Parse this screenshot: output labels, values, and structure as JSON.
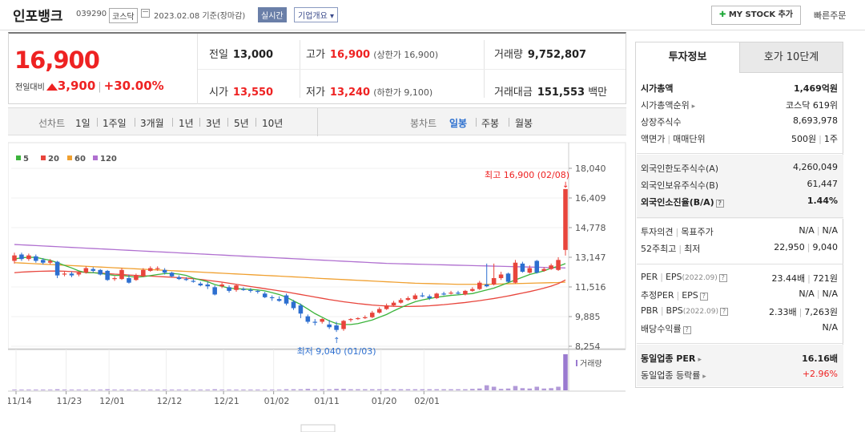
{
  "header": {
    "name": "인포뱅크",
    "code": "039290",
    "market": "코스닥",
    "date": "2023.02.08 기준(장마감)",
    "realtime": "실시간",
    "company_overview": "기업개요",
    "my_stock_add": "MY STOCK 추가",
    "quick_order": "빠른주문"
  },
  "summary": {
    "price": "16,900",
    "change_label": "전일대비",
    "change_amount": "3,900",
    "change_pct": "+30.00%",
    "prev_close_label": "전일",
    "prev_close": "13,000",
    "open_label": "시가",
    "open": "13,550",
    "high_label": "고가",
    "high": "16,900",
    "upper_limit": "(상한가 16,900)",
    "low_label": "저가",
    "low": "13,240",
    "lower_limit": "(하한가 9,100)",
    "volume_label": "거래량",
    "volume": "9,752,807",
    "amount_label": "거래대금",
    "amount": "151,553",
    "amount_unit": "백만"
  },
  "toolbar": {
    "line_chart": "선차트",
    "periods": [
      "1일",
      "1주일",
      "3개월",
      "1년",
      "3년",
      "5년",
      "10년"
    ],
    "candle_chart": "봉차트",
    "candle_periods": [
      "일봉",
      "주봉",
      "월봉"
    ],
    "active_candle": "일봉"
  },
  "chart_data": {
    "type": "candlestick",
    "legend": [
      {
        "name": "5",
        "color": "#3cb43c"
      },
      {
        "name": "20",
        "color": "#e8453c"
      },
      {
        "name": "60",
        "color": "#f0a030"
      },
      {
        "name": "120",
        "color": "#b070d0"
      }
    ],
    "y_ticks": [
      "18,040",
      "16,409",
      "14,778",
      "13,147",
      "11,516",
      "9,885",
      "8,254"
    ],
    "ylim": [
      8254,
      18040
    ],
    "x_ticks": [
      "11/14",
      "11/23",
      "12/01",
      "12/12",
      "12/21",
      "01/02",
      "01/11",
      "01/20",
      "02/01"
    ],
    "high_annotation": "최고 16,900 (02/08)",
    "low_annotation": "최저 9,040 (01/03)",
    "volume_label": "거래량",
    "candles": [
      {
        "o": 12950,
        "c": 13250,
        "h": 13400,
        "l": 12800
      },
      {
        "o": 13300,
        "c": 13050,
        "h": 13400,
        "l": 12950
      },
      {
        "o": 13050,
        "c": 13250,
        "h": 13350,
        "l": 12950
      },
      {
        "o": 13200,
        "c": 12950,
        "h": 13300,
        "l": 12850
      },
      {
        "o": 13000,
        "c": 12850,
        "h": 13100,
        "l": 12750
      },
      {
        "o": 12850,
        "c": 12950,
        "h": 13050,
        "l": 12750
      },
      {
        "o": 12900,
        "c": 12150,
        "h": 12950,
        "l": 12000
      },
      {
        "o": 12200,
        "c": 12250,
        "h": 12350,
        "l": 12100
      },
      {
        "o": 12250,
        "c": 12150,
        "h": 12350,
        "l": 12050
      },
      {
        "o": 12200,
        "c": 12300,
        "h": 12350,
        "l": 12100
      },
      {
        "o": 12300,
        "c": 12550,
        "h": 12650,
        "l": 12250
      },
      {
        "o": 12500,
        "c": 12400,
        "h": 12600,
        "l": 12300
      },
      {
        "o": 12450,
        "c": 12200,
        "h": 12500,
        "l": 12150
      },
      {
        "o": 12400,
        "c": 11900,
        "h": 12450,
        "l": 11850
      },
      {
        "o": 11950,
        "c": 12000,
        "h": 12100,
        "l": 11850
      },
      {
        "o": 11950,
        "c": 12450,
        "h": 12550,
        "l": 11900
      },
      {
        "o": 12000,
        "c": 11750,
        "h": 12200,
        "l": 11700
      },
      {
        "o": 11900,
        "c": 12150,
        "h": 12250,
        "l": 11850
      },
      {
        "o": 12100,
        "c": 12450,
        "h": 12550,
        "l": 12050
      },
      {
        "o": 12400,
        "c": 12550,
        "h": 12650,
        "l": 12350
      },
      {
        "o": 12500,
        "c": 12550,
        "h": 12650,
        "l": 12400
      },
      {
        "o": 12450,
        "c": 12300,
        "h": 12550,
        "l": 12200
      },
      {
        "o": 12300,
        "c": 12100,
        "h": 12350,
        "l": 12050
      },
      {
        "o": 12050,
        "c": 11950,
        "h": 12150,
        "l": 11900
      },
      {
        "o": 11950,
        "c": 11900,
        "h": 12050,
        "l": 11850
      },
      {
        "o": 11850,
        "c": 11800,
        "h": 11950,
        "l": 11750
      },
      {
        "o": 11700,
        "c": 11600,
        "h": 11800,
        "l": 11550
      },
      {
        "o": 11650,
        "c": 11550,
        "h": 11800,
        "l": 11400
      },
      {
        "o": 11500,
        "c": 11100,
        "h": 11600,
        "l": 11050
      },
      {
        "o": 11550,
        "c": 11650,
        "h": 11750,
        "l": 11450
      },
      {
        "o": 11500,
        "c": 11300,
        "h": 11600,
        "l": 11200
      },
      {
        "o": 11350,
        "c": 11600,
        "h": 11650,
        "l": 11250
      },
      {
        "o": 11400,
        "c": 11350,
        "h": 11500,
        "l": 11300
      },
      {
        "o": 11350,
        "c": 11300,
        "h": 11450,
        "l": 11200
      },
      {
        "o": 11300,
        "c": 11250,
        "h": 11350,
        "l": 11150
      },
      {
        "o": 11150,
        "c": 10950,
        "h": 11250,
        "l": 10900
      },
      {
        "o": 10950,
        "c": 10900,
        "h": 11050,
        "l": 10750
      },
      {
        "o": 10850,
        "c": 10750,
        "h": 11000,
        "l": 10700
      },
      {
        "o": 11050,
        "c": 10600,
        "h": 11150,
        "l": 10500
      },
      {
        "o": 10700,
        "c": 10350,
        "h": 10800,
        "l": 10250
      },
      {
        "o": 10500,
        "c": 10050,
        "h": 10600,
        "l": 9800
      },
      {
        "o": 9900,
        "c": 9600,
        "h": 10000,
        "l": 9500
      },
      {
        "o": 9600,
        "c": 9550,
        "h": 9750,
        "l": 9400
      },
      {
        "o": 9600,
        "c": 9750,
        "h": 9800,
        "l": 9500
      },
      {
        "o": 9450,
        "c": 9300,
        "h": 9700,
        "l": 9200
      },
      {
        "o": 9400,
        "c": 9150,
        "h": 9600,
        "l": 9040
      },
      {
        "o": 9200,
        "c": 9650,
        "h": 9700,
        "l": 9100
      },
      {
        "o": 9700,
        "c": 9750,
        "h": 9800,
        "l": 9600
      },
      {
        "o": 9750,
        "c": 9800,
        "h": 9850,
        "l": 9700
      },
      {
        "o": 9800,
        "c": 9850,
        "h": 9950,
        "l": 9750
      },
      {
        "o": 9850,
        "c": 10100,
        "h": 10200,
        "l": 9800
      },
      {
        "o": 10100,
        "c": 10300,
        "h": 10400,
        "l": 10050
      },
      {
        "o": 10300,
        "c": 10500,
        "h": 10600,
        "l": 10250
      },
      {
        "o": 10500,
        "c": 10650,
        "h": 10750,
        "l": 10450
      },
      {
        "o": 10650,
        "c": 10800,
        "h": 10900,
        "l": 10600
      },
      {
        "o": 10800,
        "c": 10900,
        "h": 11000,
        "l": 10750
      },
      {
        "o": 10850,
        "c": 11050,
        "h": 11150,
        "l": 10800
      },
      {
        "o": 11050,
        "c": 11000,
        "h": 11200,
        "l": 10950
      },
      {
        "o": 11000,
        "c": 10900,
        "h": 11100,
        "l": 10800
      },
      {
        "o": 10900,
        "c": 11150,
        "h": 11200,
        "l": 10850
      },
      {
        "o": 11150,
        "c": 11100,
        "h": 11250,
        "l": 11050
      },
      {
        "o": 11150,
        "c": 11200,
        "h": 11300,
        "l": 11100
      },
      {
        "o": 11200,
        "c": 11150,
        "h": 11300,
        "l": 11100
      },
      {
        "o": 11100,
        "c": 11300,
        "h": 11350,
        "l": 11050
      },
      {
        "o": 11300,
        "c": 11400,
        "h": 11500,
        "l": 11250
      },
      {
        "o": 11400,
        "c": 11750,
        "h": 11850,
        "l": 11350
      },
      {
        "o": 11650,
        "c": 11550,
        "h": 12800,
        "l": 11500
      },
      {
        "o": 11650,
        "c": 12000,
        "h": 12800,
        "l": 11600
      },
      {
        "o": 12000,
        "c": 12200,
        "h": 12350,
        "l": 11900
      },
      {
        "o": 12250,
        "c": 11800,
        "h": 12300,
        "l": 11750
      },
      {
        "o": 11750,
        "c": 12850,
        "h": 13000,
        "l": 11700
      },
      {
        "o": 12800,
        "c": 12350,
        "h": 12900,
        "l": 12300
      },
      {
        "o": 12300,
        "c": 12550,
        "h": 12700,
        "l": 12250
      },
      {
        "o": 12950,
        "c": 12300,
        "h": 13000,
        "l": 12250
      },
      {
        "o": 12400,
        "c": 12500,
        "h": 12600,
        "l": 12350
      },
      {
        "o": 12500,
        "c": 12700,
        "h": 12800,
        "l": 12450
      },
      {
        "o": 12450,
        "c": 13000,
        "h": 13150,
        "l": 12400
      },
      {
        "o": 13550,
        "c": 16900,
        "h": 16900,
        "l": 13240
      }
    ],
    "volumes": [
      0.02,
      0.02,
      0.02,
      0.02,
      0.02,
      0.02,
      0.03,
      0.02,
      0.02,
      0.02,
      0.02,
      0.02,
      0.02,
      0.03,
      0.02,
      0.02,
      0.02,
      0.02,
      0.02,
      0.02,
      0.02,
      0.02,
      0.02,
      0.02,
      0.02,
      0.02,
      0.02,
      0.02,
      0.03,
      0.02,
      0.02,
      0.02,
      0.02,
      0.02,
      0.02,
      0.02,
      0.02,
      0.02,
      0.03,
      0.03,
      0.03,
      0.04,
      0.03,
      0.03,
      0.03,
      0.04,
      0.04,
      0.03,
      0.03,
      0.03,
      0.03,
      0.03,
      0.03,
      0.03,
      0.03,
      0.03,
      0.03,
      0.03,
      0.03,
      0.03,
      0.03,
      0.03,
      0.03,
      0.03,
      0.04,
      0.05,
      0.14,
      0.1,
      0.04,
      0.05,
      0.12,
      0.06,
      0.05,
      0.1,
      0.05,
      0.06,
      0.1,
      1.0
    ],
    "ma5": [
      13050,
      13120,
      13150,
      13140,
      13060,
      12980,
      12850,
      12700,
      12560,
      12400,
      12300,
      12300,
      12260,
      12200,
      12150,
      12150,
      12100,
      12050,
      12080,
      12140,
      12200,
      12250,
      12260,
      12220,
      12150,
      12000,
      11900,
      11800,
      11650,
      11550,
      11450,
      11420,
      11400,
      11380,
      11350,
      11300,
      11200,
      11100,
      10950,
      10750,
      10550,
      10300,
      10050,
      9850,
      9650,
      9500,
      9450,
      9450,
      9500,
      9600,
      9700,
      9850,
      10000,
      10200,
      10380,
      10550,
      10700,
      10800,
      10880,
      10950,
      11000,
      11050,
      11080,
      11120,
      11150,
      11250,
      11350,
      11450,
      11600,
      11750,
      11900,
      12050,
      12200,
      12300,
      12400,
      12550,
      12650,
      12800
    ],
    "ma20": [
      12300,
      12330,
      12350,
      12370,
      12380,
      12390,
      12390,
      12380,
      12360,
      12340,
      12320,
      12300,
      12280,
      12250,
      12220,
      12200,
      12170,
      12150,
      12130,
      12110,
      12090,
      12070,
      12050,
      12030,
      12000,
      11970,
      11930,
      11880,
      11830,
      11780,
      11720,
      11660,
      11600,
      11540,
      11480,
      11420,
      11360,
      11300,
      11240,
      11170,
      11100,
      11030,
      10960,
      10890,
      10820,
      10760,
      10700,
      10650,
      10600,
      10560,
      10520,
      10490,
      10470,
      10450,
      10440,
      10440,
      10450,
      10460,
      10480,
      10510,
      10540,
      10580,
      10620,
      10660,
      10710,
      10760,
      10820,
      10880,
      10950,
      11020,
      11100,
      11180,
      11260,
      11350,
      11450,
      11560,
      11700,
      11900
    ],
    "ma60": [
      12850,
      12830,
      12810,
      12790,
      12770,
      12750,
      12730,
      12710,
      12690,
      12670,
      12650,
      12630,
      12610,
      12590,
      12570,
      12550,
      12530,
      12510,
      12490,
      12470,
      12450,
      12430,
      12410,
      12390,
      12370,
      12350,
      12330,
      12310,
      12290,
      12270,
      12250,
      12230,
      12210,
      12190,
      12170,
      12150,
      12130,
      12110,
      12090,
      12070,
      12050,
      12030,
      12000,
      11980,
      11960,
      11940,
      11920,
      11900,
      11880,
      11860,
      11840,
      11820,
      11800,
      11780,
      11760,
      11740,
      11720,
      11710,
      11700,
      11690,
      11680,
      11670,
      11660,
      11660,
      11660,
      11660,
      11660,
      11670,
      11680,
      11690,
      11700,
      11710,
      11720,
      11730,
      11740,
      11750,
      11760,
      11780
    ],
    "ma120": [
      13850,
      13830,
      13810,
      13790,
      13770,
      13750,
      13730,
      13710,
      13690,
      13670,
      13650,
      13630,
      13610,
      13590,
      13570,
      13550,
      13530,
      13510,
      13490,
      13470,
      13450,
      13430,
      13410,
      13390,
      13370,
      13350,
      13330,
      13310,
      13290,
      13270,
      13250,
      13230,
      13210,
      13190,
      13170,
      13150,
      13130,
      13110,
      13090,
      13070,
      13050,
      13030,
      13010,
      12990,
      12970,
      12950,
      12930,
      12910,
      12890,
      12870,
      12850,
      12830,
      12810,
      12800,
      12790,
      12780,
      12770,
      12760,
      12750,
      12740,
      12730,
      12720,
      12710,
      12700,
      12690,
      12680,
      12670,
      12660,
      12650,
      12640,
      12630,
      12620,
      12610,
      12600,
      12590,
      12580,
      12570,
      12560
    ]
  },
  "invest_panel": {
    "tab_info": "투자정보",
    "tab_orderbook": "호가 10단계",
    "rows": [
      {
        "k": "시가총액",
        "v": "1,469억원",
        "bold": true
      },
      {
        "k": "시가총액순위",
        "v": "코스닥 619위",
        "arrow": true
      },
      {
        "k": "상장주식수",
        "v": "8,693,978"
      },
      {
        "k": "액면가",
        "k2": "매매단위",
        "v": "500원",
        "v2": "1주"
      },
      {
        "k": "외국인한도주식수(A)",
        "v": "4,260,049"
      },
      {
        "k": "외국인보유주식수(B)",
        "v": "61,447"
      },
      {
        "k": "외국인소진율(B/A)",
        "v": "1.44%",
        "bold": true,
        "q": true
      },
      {
        "k": "투자의견",
        "k2": "목표주가",
        "v": "N/A",
        "v2": "N/A"
      },
      {
        "k": "52주최고",
        "k2": "최저",
        "v": "22,950",
        "v2": "9,040"
      },
      {
        "k": "PER",
        "k2": "EPS",
        "k2sub": "(2022.09)",
        "v": "23.44배",
        "v2": "721원",
        "q": true
      },
      {
        "k": "추정PER",
        "k2": "EPS",
        "v": "N/A",
        "v2": "N/A",
        "q": true
      },
      {
        "k": "PBR",
        "k2": "BPS",
        "k2sub": "(2022.09)",
        "v": "2.33배",
        "v2": "7,263원",
        "q": true
      },
      {
        "k": "배당수익률",
        "v": "N/A",
        "q": true
      },
      {
        "k": "동일업종 PER",
        "v": "16.16배",
        "bold": true,
        "arrow": true
      },
      {
        "k": "동일업종 등락률",
        "v": "+2.96%",
        "red": true,
        "arrow": true
      }
    ]
  }
}
